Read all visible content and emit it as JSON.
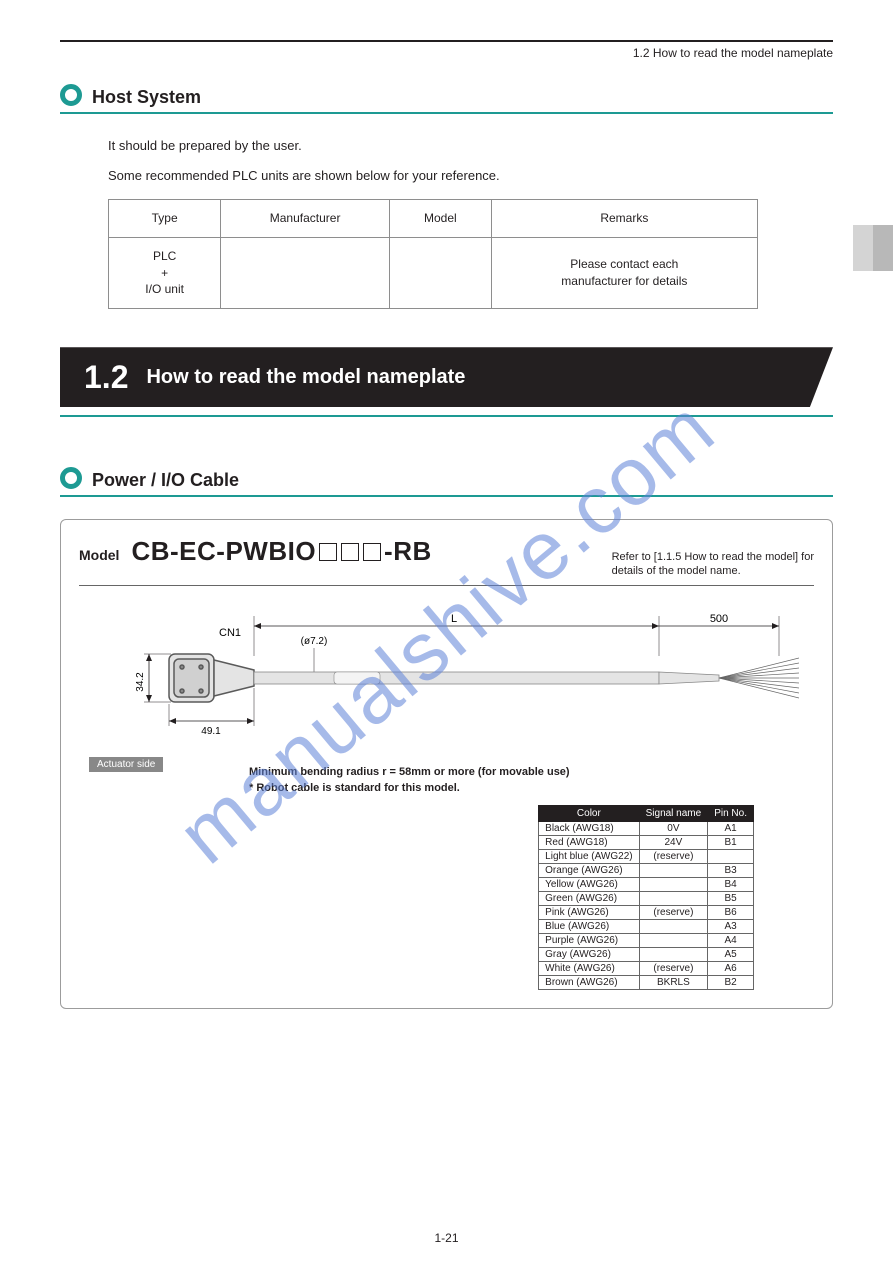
{
  "page_number": "1-21",
  "chapter_running_head": "1.2 How to read the model nameplate",
  "top_section": {
    "heading": "Host System",
    "intro_line1": "It should be prepared by the user.",
    "intro_line2": "Some recommended PLC units are shown below for your reference.",
    "table": {
      "headers": [
        "Type",
        "Manufacturer",
        "Model",
        "Remarks"
      ],
      "rows": [
        [
          "PLC\n+\nI/O unit",
          "",
          "",
          "Please contact each\nmanufacturer for details"
        ]
      ]
    }
  },
  "chapter_banner": {
    "number": "1.2",
    "title": "How to read the model nameplate"
  },
  "cable_section": {
    "heading": "Power / I/O Cable",
    "model_prefix": "Model",
    "model_name_left": "CB-EC-PWBIO",
    "model_name_right": "-RB",
    "note_right": "Refer to [1.1.5 How to read the model] for\ndetails of the model name.",
    "drawing": {
      "cn1_label": "CN1",
      "dim_height": "34.2",
      "dim_depth": "49.1",
      "dim_cable_dia": "(ø7.2)",
      "dim_length": "L",
      "dim_tail": "500",
      "actuator_side": "Actuator side",
      "bend_note": "Minimum bending radius r = 58mm or more (for movable use)",
      "robot_note": "* Robot cable is standard for this model."
    },
    "wire_table": {
      "headers": [
        "Color",
        "Signal name",
        "Pin No."
      ],
      "rows": [
        [
          "Black (AWG18)",
          "0V",
          "A1"
        ],
        [
          "Red (AWG18)",
          "24V",
          "B1"
        ],
        [
          "Light blue (AWG22)",
          "(reserve)",
          ""
        ],
        [
          "Orange (AWG26)",
          "",
          "B3"
        ],
        [
          "Yellow (AWG26)",
          "",
          "B4"
        ],
        [
          "Green (AWG26)",
          "",
          "B5"
        ],
        [
          "Pink (AWG26)",
          "(reserve)",
          "B6"
        ],
        [
          "Blue (AWG26)",
          "",
          "A3"
        ],
        [
          "Purple (AWG26)",
          "",
          "A4"
        ],
        [
          "Gray (AWG26)",
          "",
          "A5"
        ],
        [
          "White (AWG26)",
          "(reserve)",
          "A6"
        ],
        [
          "Brown (AWG26)",
          "BKRLS",
          "B2"
        ]
      ]
    }
  },
  "colors": {
    "teal": "#1d9a93",
    "black": "#231f20",
    "watermark": "#5f82d8"
  },
  "watermark": "manualshive.com"
}
